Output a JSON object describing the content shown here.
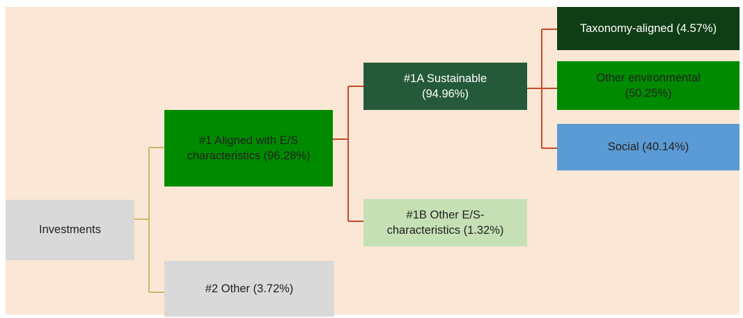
{
  "nodes": [
    {
      "label": "Investments"
    },
    {
      "label": "#1 Aligned with E/S characteristics (96.28%)"
    },
    {
      "label": "#2 Other (3.72%)"
    },
    {
      "label": "#1A Sustainable (94.96%)"
    },
    {
      "label": "#1B Other E/S-characteristics (1.32%)"
    },
    {
      "label": "Taxonomy-aligned (4.57%)"
    },
    {
      "label": "Other environmental (50.25%)"
    },
    {
      "label": "Social (40.14%)"
    }
  ]
}
